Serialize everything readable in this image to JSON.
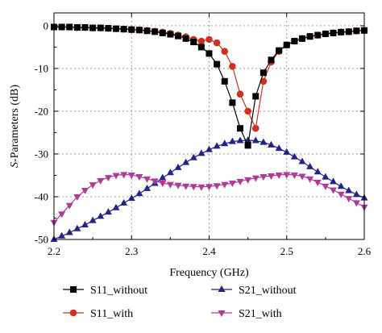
{
  "chart_data": {
    "type": "line",
    "xlabel": "Frequency (GHz)",
    "ylabel_prefix": "S",
    "ylabel_suffix": "-Parameters (dB)",
    "xlim": [
      2.2,
      2.6
    ],
    "ylim": [
      -50,
      3
    ],
    "xticks": [
      "2.2",
      "2.3",
      "2.4",
      "2.5",
      "2.6"
    ],
    "yticks": [
      "0",
      "-10",
      "-20",
      "-30",
      "-40",
      "-50"
    ],
    "grid": true,
    "legend_position": "bottom",
    "series": [
      {
        "name": "S11_without",
        "color": "#000000",
        "marker": "square",
        "x": [
          2.2,
          2.21,
          2.22,
          2.23,
          2.24,
          2.25,
          2.26,
          2.27,
          2.28,
          2.29,
          2.3,
          2.31,
          2.32,
          2.33,
          2.34,
          2.35,
          2.36,
          2.37,
          2.38,
          2.39,
          2.4,
          2.41,
          2.42,
          2.43,
          2.44,
          2.45,
          2.46,
          2.47,
          2.48,
          2.49,
          2.5,
          2.51,
          2.52,
          2.53,
          2.54,
          2.55,
          2.56,
          2.57,
          2.58,
          2.59,
          2.6
        ],
        "y": [
          -0.3,
          -0.3,
          -0.3,
          -0.4,
          -0.4,
          -0.5,
          -0.5,
          -0.6,
          -0.7,
          -0.8,
          -0.9,
          -1.0,
          -1.2,
          -1.4,
          -1.7,
          -2.0,
          -2.4,
          -3.0,
          -3.8,
          -5.0,
          -6.5,
          -9.0,
          -13.0,
          -18.0,
          -24.0,
          -28.0,
          -16.5,
          -11.0,
          -8.0,
          -5.8,
          -4.5,
          -3.6,
          -3.0,
          -2.5,
          -2.2,
          -1.9,
          -1.7,
          -1.5,
          -1.4,
          -1.2,
          -1.1
        ]
      },
      {
        "name": "S11_with",
        "color": "#d0311f",
        "marker": "circle",
        "x": [
          2.2,
          2.21,
          2.22,
          2.23,
          2.24,
          2.25,
          2.26,
          2.27,
          2.28,
          2.29,
          2.3,
          2.31,
          2.32,
          2.33,
          2.34,
          2.35,
          2.36,
          2.37,
          2.38,
          2.39,
          2.4,
          2.41,
          2.42,
          2.43,
          2.44,
          2.45,
          2.46,
          2.47,
          2.48,
          2.49,
          2.5,
          2.51,
          2.52,
          2.53,
          2.54,
          2.55,
          2.56,
          2.57,
          2.58,
          2.59,
          2.6
        ],
        "y": [
          -0.3,
          -0.3,
          -0.3,
          -0.4,
          -0.4,
          -0.5,
          -0.5,
          -0.6,
          -0.7,
          -0.8,
          -0.9,
          -1.0,
          -1.1,
          -1.3,
          -1.5,
          -1.8,
          -2.2,
          -2.6,
          -3.2,
          -3.6,
          -3.2,
          -4.0,
          -6.0,
          -9.5,
          -16.0,
          -20.0,
          -24.0,
          -13.0,
          -8.5,
          -6.0,
          -4.5,
          -3.6,
          -3.0,
          -2.5,
          -2.2,
          -1.9,
          -1.7,
          -1.5,
          -1.4,
          -1.2,
          -1.1
        ]
      },
      {
        "name": "S21_without",
        "color": "#22228a",
        "marker": "triangle-up",
        "x": [
          2.2,
          2.21,
          2.22,
          2.23,
          2.24,
          2.25,
          2.26,
          2.27,
          2.28,
          2.29,
          2.3,
          2.31,
          2.32,
          2.33,
          2.34,
          2.35,
          2.36,
          2.37,
          2.38,
          2.39,
          2.4,
          2.41,
          2.42,
          2.43,
          2.44,
          2.45,
          2.46,
          2.47,
          2.48,
          2.49,
          2.5,
          2.51,
          2.52,
          2.53,
          2.54,
          2.55,
          2.56,
          2.57,
          2.58,
          2.59,
          2.6
        ],
        "y": [
          -50.0,
          -49.2,
          -48.4,
          -47.5,
          -46.6,
          -45.6,
          -44.6,
          -43.6,
          -42.6,
          -41.5,
          -40.4,
          -39.3,
          -38.1,
          -36.9,
          -35.6,
          -34.4,
          -33.2,
          -32.0,
          -30.9,
          -29.9,
          -29.0,
          -28.2,
          -27.6,
          -27.1,
          -26.9,
          -26.8,
          -26.9,
          -27.3,
          -27.9,
          -28.7,
          -29.6,
          -30.7,
          -31.8,
          -33.0,
          -34.2,
          -35.4,
          -36.5,
          -37.6,
          -38.6,
          -39.5,
          -40.3
        ]
      },
      {
        "name": "S21_with",
        "color": "#b03a9a",
        "marker": "triangle-down",
        "x": [
          2.2,
          2.21,
          2.22,
          2.23,
          2.24,
          2.25,
          2.26,
          2.27,
          2.28,
          2.29,
          2.3,
          2.31,
          2.32,
          2.33,
          2.34,
          2.35,
          2.36,
          2.37,
          2.38,
          2.39,
          2.4,
          2.41,
          2.42,
          2.43,
          2.44,
          2.45,
          2.46,
          2.47,
          2.48,
          2.49,
          2.5,
          2.51,
          2.52,
          2.53,
          2.54,
          2.55,
          2.56,
          2.57,
          2.58,
          2.59,
          2.6
        ],
        "y": [
          -46.0,
          -44.0,
          -42.0,
          -40.0,
          -38.5,
          -37.2,
          -36.2,
          -35.5,
          -35.0,
          -34.8,
          -34.9,
          -35.3,
          -35.8,
          -36.3,
          -36.8,
          -37.1,
          -37.3,
          -37.5,
          -37.6,
          -37.7,
          -37.6,
          -37.4,
          -37.1,
          -36.8,
          -36.4,
          -36.0,
          -35.6,
          -35.3,
          -35.1,
          -34.9,
          -34.8,
          -34.9,
          -35.2,
          -35.8,
          -36.6,
          -37.5,
          -38.4,
          -39.4,
          -40.4,
          -41.4,
          -42.4
        ]
      }
    ]
  }
}
